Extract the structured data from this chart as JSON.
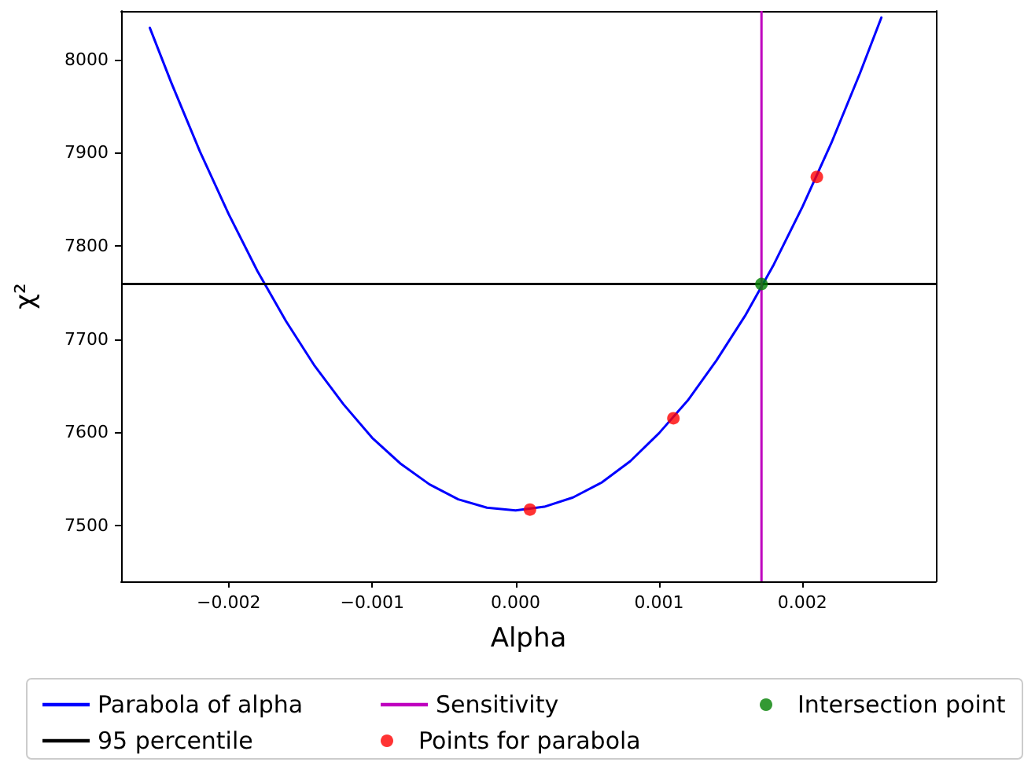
{
  "chart_data": {
    "type": "line",
    "xlabel": "Alpha",
    "ylabel": "χ²",
    "xlim": [
      -0.00275,
      0.00293
    ],
    "ylim": [
      7440,
      8052
    ],
    "xticks": [
      {
        "value": -0.002,
        "label": "−0.002"
      },
      {
        "value": -0.001,
        "label": "−0.001"
      },
      {
        "value": 0,
        "label": "0.000"
      },
      {
        "value": 0.001,
        "label": "0.001"
      },
      {
        "value": 0.002,
        "label": "0.002"
      }
    ],
    "yticks": [
      7500,
      7600,
      7700,
      7800,
      7900,
      8000
    ],
    "grid": false,
    "legend": "bottom",
    "series": [
      {
        "name": "Parabola of alpha",
        "color": "#0000ff",
        "marker": "none",
        "x": [
          -0.00255,
          -0.0024,
          -0.0022,
          -0.002,
          -0.0018,
          -0.0016,
          -0.0014,
          -0.0012,
          -0.001,
          -0.0008,
          -0.0006,
          -0.0004,
          -0.0002,
          0,
          0.0002,
          0.0004,
          0.0006,
          0.0008,
          0.001,
          0.0012,
          0.0014,
          0.0016,
          0.0018,
          0.002,
          0.0022,
          0.0024,
          0.00255
        ],
        "values": [
          8034,
          7975,
          7901,
          7834,
          7773,
          7719,
          7671,
          7630,
          7594,
          7566,
          7544,
          7528,
          7519,
          7516,
          7520,
          7530,
          7546,
          7569,
          7599,
          7634,
          7677,
          7725,
          7780,
          7842,
          7910,
          7985,
          8045
        ]
      },
      {
        "name": "Points for parabola",
        "type": "scatter",
        "color": "#ff0000",
        "marker": "circle",
        "x": [
          0.0001,
          0.0011,
          0.0021
        ],
        "values": [
          7517,
          7615,
          7874
        ]
      },
      {
        "name": "Intersection point",
        "type": "scatter",
        "color": "#008000",
        "marker": "circle",
        "x": [
          0.001714
        ],
        "values": [
          7759
        ]
      }
    ],
    "ref_lines": [
      {
        "axis": "y",
        "value": 7759,
        "label": "95 percentile",
        "color": "#000000",
        "line_style": "solid"
      },
      {
        "axis": "x",
        "value": 0.001714,
        "label": "Sensitivity",
        "color": "#bf00bf",
        "line_style": "solid"
      }
    ]
  }
}
